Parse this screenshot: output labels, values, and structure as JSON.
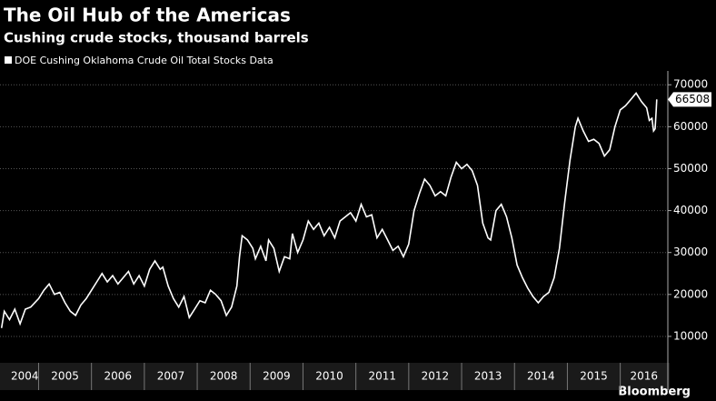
{
  "chart_data": {
    "type": "line",
    "title": "The Oil Hub of the Americas",
    "subtitle": "Cushing crude stocks, thousand barrels",
    "source": "Bloomberg",
    "x": [
      2004.3,
      2004.35,
      2004.45,
      2004.55,
      2004.65,
      2004.75,
      2004.85,
      2005.0,
      2005.1,
      2005.2,
      2005.3,
      2005.4,
      2005.5,
      2005.6,
      2005.7,
      2005.8,
      2005.9,
      2006.0,
      2006.1,
      2006.2,
      2006.3,
      2006.4,
      2006.5,
      2006.6,
      2006.7,
      2006.8,
      2006.9,
      2007.0,
      2007.1,
      2007.2,
      2007.3,
      2007.35,
      2007.45,
      2007.55,
      2007.65,
      2007.75,
      2007.85,
      2007.95,
      2008.05,
      2008.15,
      2008.25,
      2008.35,
      2008.45,
      2008.55,
      2008.65,
      2008.75,
      2008.8,
      2008.85,
      2008.95,
      2009.05,
      2009.1,
      2009.2,
      2009.3,
      2009.35,
      2009.45,
      2009.55,
      2009.65,
      2009.75,
      2009.8,
      2009.9,
      2010.0,
      2010.1,
      2010.2,
      2010.3,
      2010.4,
      2010.5,
      2010.6,
      2010.7,
      2010.8,
      2010.9,
      2011.0,
      2011.1,
      2011.2,
      2011.3,
      2011.4,
      2011.5,
      2011.6,
      2011.7,
      2011.8,
      2011.9,
      2012.0,
      2012.1,
      2012.2,
      2012.3,
      2012.4,
      2012.5,
      2012.6,
      2012.7,
      2012.8,
      2012.9,
      2013.0,
      2013.1,
      2013.2,
      2013.3,
      2013.4,
      2013.5,
      2013.55,
      2013.65,
      2013.75,
      2013.85,
      2013.95,
      2014.05,
      2014.15,
      2014.25,
      2014.35,
      2014.45,
      2014.55,
      2014.65,
      2014.75,
      2014.85,
      2014.95,
      2015.05,
      2015.15,
      2015.2,
      2015.3,
      2015.4,
      2015.5,
      2015.6,
      2015.7,
      2015.8,
      2015.9,
      2016.0,
      2016.1,
      2016.2,
      2016.3,
      2016.4,
      2016.5,
      2016.55,
      2016.6,
      2016.63,
      2016.66,
      2016.68,
      2016.69
    ],
    "series": [
      {
        "name": "DOE Cushing Oklahoma Crude Oil Total Stocks Data",
        "color": "#ffffff",
        "values": [
          12000,
          16000,
          14000,
          16500,
          13000,
          16500,
          17000,
          19000,
          21000,
          22500,
          20000,
          20500,
          18000,
          16000,
          15000,
          17500,
          19000,
          21000,
          23000,
          25000,
          23000,
          24500,
          22500,
          24000,
          25500,
          22500,
          24500,
          22000,
          26000,
          28000,
          26000,
          26500,
          22000,
          19000,
          17000,
          19500,
          14500,
          16500,
          18500,
          18000,
          21000,
          20000,
          18500,
          15000,
          17000,
          22000,
          29000,
          34000,
          33000,
          31000,
          28500,
          31500,
          28000,
          33000,
          31000,
          25500,
          29000,
          28500,
          34500,
          30000,
          33000,
          37500,
          35500,
          37000,
          34000,
          36000,
          33500,
          37500,
          38500,
          39500,
          37500,
          41500,
          38500,
          39000,
          33500,
          35500,
          33000,
          30500,
          31500,
          29000,
          32000,
          40000,
          44000,
          47500,
          46000,
          43500,
          44500,
          43500,
          48000,
          51500,
          50000,
          51000,
          49500,
          46000,
          37000,
          33500,
          33000,
          40000,
          41500,
          38500,
          33500,
          27000,
          24000,
          21500,
          19500,
          18000,
          19500,
          20500,
          24000,
          31000,
          42000,
          52000,
          60000,
          62000,
          59000,
          56500,
          57000,
          56000,
          53000,
          54500,
          60000,
          64000,
          65000,
          66500,
          68000,
          66000,
          64500,
          61500,
          62000,
          59000,
          59500,
          64000,
          66508
        ]
      }
    ],
    "xlim": [
      2004.27,
      2016.9
    ],
    "xticks": [
      2004,
      2005,
      2006,
      2007,
      2008,
      2009,
      2010,
      2011,
      2012,
      2013,
      2014,
      2015,
      2016
    ],
    "ylim": [
      3700,
      73300
    ],
    "yticks": [
      10000,
      20000,
      30000,
      40000,
      50000,
      60000,
      70000
    ],
    "grid": true
  }
}
